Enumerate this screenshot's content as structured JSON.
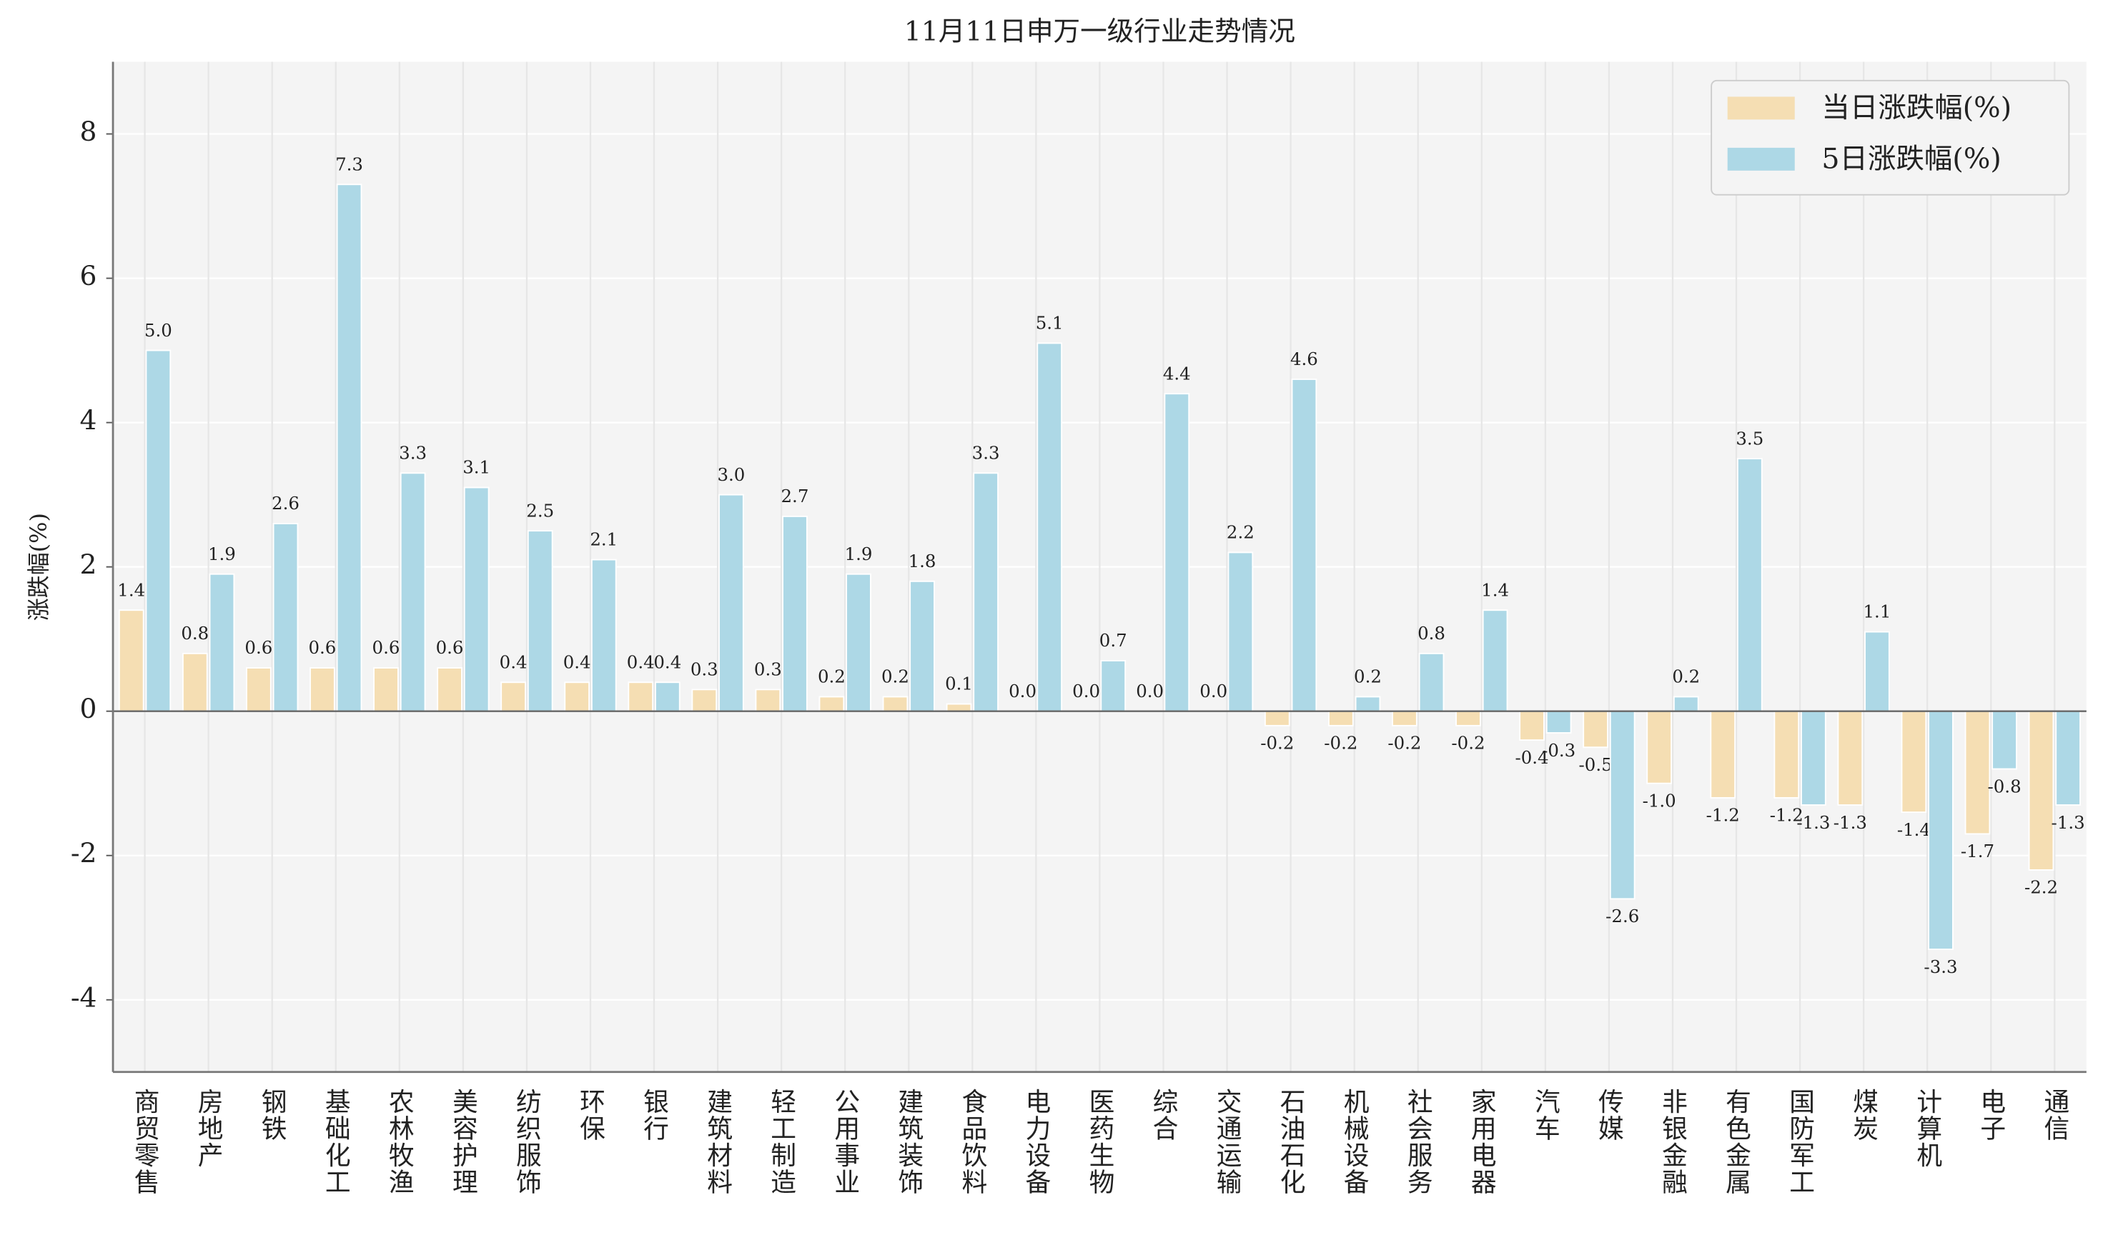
{
  "chart_data": {
    "type": "bar",
    "title": "11月11日申万一级行业走势情况",
    "ylabel": "涨跌幅(%)",
    "categories": [
      "商贸零售",
      "房地产",
      "钢铁",
      "基础化工",
      "农林牧渔",
      "美容护理",
      "纺织服饰",
      "环保",
      "银行",
      "建筑材料",
      "轻工制造",
      "公用事业",
      "建筑装饰",
      "食品饮料",
      "电力设备",
      "医药生物",
      "综合",
      "交通运输",
      "石油石化",
      "机械设备",
      "社会服务",
      "家用电器",
      "汽车",
      "传媒",
      "非银金融",
      "有色金属",
      "国防军工",
      "煤炭",
      "计算机",
      "电子",
      "通信"
    ],
    "series": [
      {
        "name": "当日涨跌幅(%)",
        "color": "#f5deb3",
        "values": [
          1.4,
          0.8,
          0.6,
          0.6,
          0.6,
          0.6,
          0.4,
          0.4,
          0.4,
          0.3,
          0.3,
          0.2,
          0.2,
          0.1,
          0,
          0,
          0,
          0,
          -0.2,
          -0.2,
          -0.2,
          -0.2,
          -0.4,
          -0.5,
          -1.0,
          -1.2,
          -1.2,
          -1.3,
          -1.4,
          -1.7,
          -2.2
        ],
        "value_labels": [
          "1.4",
          "0.8",
          "0.6",
          "0.6",
          "0.6",
          "0.6",
          "0.4",
          "0.4",
          "0.4",
          "0.3",
          "0.3",
          "0.2",
          "0.2",
          "0.1",
          "0.0",
          "0.0",
          "0.0",
          "0.0",
          "-0.2",
          "-0.2",
          "-0.2",
          "-0.2",
          "-0.4",
          "-0.5",
          "-1.0",
          "-1.2",
          "-1.2",
          "-1.3",
          "-1.4",
          "-1.7",
          "-2.2"
        ]
      },
      {
        "name": "5日涨跌幅(%)",
        "color": "#add8e6",
        "values": [
          5.0,
          1.9,
          2.6,
          7.3,
          3.3,
          3.1,
          2.5,
          2.1,
          0.4,
          3.0,
          2.7,
          1.9,
          1.8,
          3.3,
          5.1,
          0.7,
          4.4,
          2.2,
          4.6,
          0.2,
          0.8,
          1.4,
          -0.3,
          -2.6,
          0.2,
          3.5,
          -1.3,
          1.1,
          -3.3,
          -0.8,
          -1.3
        ],
        "value_labels": [
          "5.0",
          "1.9",
          "2.6",
          "7.3",
          "3.3",
          "3.1",
          "2.5",
          "2.1",
          "0.4",
          "3.0",
          "2.7",
          "1.9",
          "1.8",
          "3.3",
          "5.1",
          "0.7",
          "4.4",
          "2.2",
          "4.6",
          "0.2",
          "0.8",
          "1.4",
          "-0.3",
          "-2.6",
          "0.2",
          "3.5",
          "-1.3",
          "1.1",
          "-3.3",
          "-0.8",
          "-1.3"
        ]
      }
    ],
    "ylim": [
      -5,
      9
    ],
    "yticks": [
      -4,
      -2,
      0,
      2,
      4,
      6,
      8
    ],
    "grid": true,
    "legend": "upper right"
  }
}
